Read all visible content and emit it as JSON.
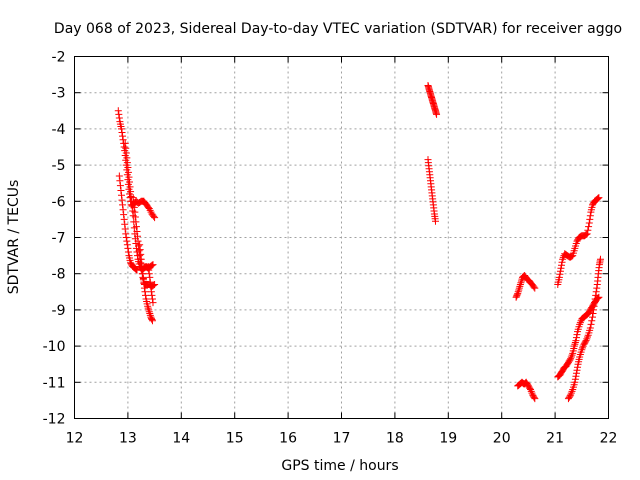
{
  "chart_data": {
    "type": "scatter",
    "title": "Day 068 of 2023, Sidereal Day-to-day VTEC variation (SDTVAR) for receiver aggo",
    "xlabel": "GPS time / hours",
    "ylabel": "SDTVAR / TECUs",
    "xlim": [
      12,
      22
    ],
    "ylim": [
      -12,
      -2
    ],
    "xticks": [
      12,
      13,
      14,
      15,
      16,
      17,
      18,
      19,
      20,
      21,
      22
    ],
    "yticks": [
      -2,
      -3,
      -4,
      -5,
      -6,
      -7,
      -8,
      -9,
      -10,
      -11,
      -12
    ],
    "grid": true,
    "marker": "+",
    "marker_color": "#ff0000",
    "series": [
      {
        "name": "trace-1",
        "points": [
          [
            12.82,
            -3.5
          ],
          [
            12.85,
            -3.8
          ],
          [
            12.88,
            -4.0
          ],
          [
            12.91,
            -4.3
          ],
          [
            12.94,
            -4.6
          ],
          [
            12.97,
            -5.0
          ],
          [
            13.0,
            -5.4
          ],
          [
            13.03,
            -5.8
          ],
          [
            13.06,
            -6.1
          ],
          [
            13.1,
            -6.1
          ],
          [
            13.15,
            -6.0
          ],
          [
            13.2,
            -6.05
          ],
          [
            13.25,
            -6.0
          ],
          [
            13.3,
            -6.0
          ],
          [
            13.35,
            -6.1
          ],
          [
            13.4,
            -6.2
          ],
          [
            13.45,
            -6.35
          ],
          [
            13.5,
            -6.45
          ]
        ]
      },
      {
        "name": "trace-2",
        "points": [
          [
            12.95,
            -4.4
          ],
          [
            12.98,
            -4.8
          ],
          [
            13.01,
            -5.2
          ],
          [
            13.04,
            -5.6
          ],
          [
            13.07,
            -6.0
          ],
          [
            13.1,
            -6.4
          ],
          [
            13.13,
            -6.9
          ],
          [
            13.16,
            -7.3
          ],
          [
            13.19,
            -7.6
          ],
          [
            13.22,
            -7.8
          ],
          [
            13.26,
            -7.9
          ],
          [
            13.3,
            -7.85
          ],
          [
            13.34,
            -7.8
          ],
          [
            13.38,
            -7.85
          ],
          [
            13.42,
            -7.8
          ],
          [
            13.47,
            -7.75
          ]
        ]
      },
      {
        "name": "trace-3",
        "points": [
          [
            12.84,
            -5.3
          ],
          [
            12.87,
            -5.7
          ],
          [
            12.9,
            -6.1
          ],
          [
            12.93,
            -6.5
          ],
          [
            12.96,
            -6.9
          ],
          [
            12.99,
            -7.2
          ],
          [
            13.02,
            -7.5
          ],
          [
            13.05,
            -7.7
          ],
          [
            13.09,
            -7.8
          ],
          [
            13.13,
            -7.85
          ],
          [
            13.17,
            -7.9
          ]
        ]
      },
      {
        "name": "trace-4",
        "points": [
          [
            13.1,
            -5.9
          ],
          [
            13.13,
            -6.3
          ],
          [
            13.16,
            -6.7
          ],
          [
            13.19,
            -7.1
          ],
          [
            13.22,
            -7.5
          ],
          [
            13.25,
            -7.8
          ],
          [
            13.28,
            -8.1
          ],
          [
            13.31,
            -8.3
          ],
          [
            13.35,
            -8.3
          ],
          [
            13.4,
            -8.3
          ],
          [
            13.45,
            -8.35
          ],
          [
            13.5,
            -8.3
          ]
        ]
      },
      {
        "name": "trace-5",
        "points": [
          [
            13.22,
            -7.2
          ],
          [
            13.25,
            -7.6
          ],
          [
            13.28,
            -8.0
          ],
          [
            13.31,
            -8.4
          ],
          [
            13.34,
            -8.7
          ],
          [
            13.37,
            -8.9
          ],
          [
            13.4,
            -9.05
          ],
          [
            13.43,
            -9.2
          ],
          [
            13.46,
            -9.3
          ]
        ]
      },
      {
        "name": "trace-6",
        "points": [
          [
            13.38,
            -7.8
          ],
          [
            13.41,
            -8.1
          ],
          [
            13.44,
            -8.5
          ],
          [
            13.47,
            -8.8
          ]
        ]
      },
      {
        "name": "trace-7",
        "points": [
          [
            18.62,
            -2.8
          ],
          [
            18.64,
            -2.9
          ],
          [
            18.66,
            -3.0
          ],
          [
            18.68,
            -3.1
          ],
          [
            18.7,
            -3.2
          ],
          [
            18.72,
            -3.3
          ],
          [
            18.74,
            -3.4
          ],
          [
            18.76,
            -3.5
          ],
          [
            18.78,
            -3.6
          ]
        ]
      },
      {
        "name": "trace-8",
        "points": [
          [
            18.62,
            -4.85
          ],
          [
            18.64,
            -5.1
          ],
          [
            18.66,
            -5.35
          ],
          [
            18.68,
            -5.6
          ],
          [
            18.7,
            -5.85
          ],
          [
            18.72,
            -6.1
          ],
          [
            18.74,
            -6.35
          ],
          [
            18.76,
            -6.55
          ]
        ]
      },
      {
        "name": "trace-9",
        "points": [
          [
            20.27,
            -8.65
          ],
          [
            20.3,
            -8.55
          ],
          [
            20.33,
            -8.4
          ],
          [
            20.36,
            -8.25
          ],
          [
            20.39,
            -8.1
          ],
          [
            20.43,
            -8.05
          ],
          [
            20.47,
            -8.15
          ],
          [
            20.52,
            -8.2
          ],
          [
            20.57,
            -8.3
          ],
          [
            20.62,
            -8.4
          ]
        ]
      },
      {
        "name": "trace-10",
        "points": [
          [
            20.3,
            -11.1
          ],
          [
            20.34,
            -11.05
          ],
          [
            20.38,
            -11.0
          ],
          [
            20.42,
            -11.05
          ],
          [
            20.46,
            -11.0
          ],
          [
            20.5,
            -11.1
          ],
          [
            20.54,
            -11.2
          ],
          [
            20.58,
            -11.35
          ],
          [
            20.62,
            -11.45
          ]
        ]
      },
      {
        "name": "trace-11",
        "points": [
          [
            21.05,
            -8.3
          ],
          [
            21.08,
            -8.1
          ],
          [
            21.11,
            -7.85
          ],
          [
            21.14,
            -7.6
          ],
          [
            21.18,
            -7.45
          ],
          [
            21.23,
            -7.5
          ],
          [
            21.28,
            -7.55
          ],
          [
            21.33,
            -7.5
          ],
          [
            21.37,
            -7.3
          ],
          [
            21.41,
            -7.1
          ],
          [
            21.45,
            -7.0
          ],
          [
            21.5,
            -6.95
          ],
          [
            21.55,
            -6.95
          ],
          [
            21.6,
            -6.9
          ],
          [
            21.64,
            -6.6
          ],
          [
            21.67,
            -6.3
          ],
          [
            21.7,
            -6.1
          ],
          [
            21.74,
            -6.0
          ],
          [
            21.78,
            -5.95
          ],
          [
            21.82,
            -5.9
          ]
        ]
      },
      {
        "name": "trace-12",
        "points": [
          [
            21.05,
            -10.85
          ],
          [
            21.09,
            -10.8
          ],
          [
            21.13,
            -10.7
          ],
          [
            21.17,
            -10.6
          ],
          [
            21.21,
            -10.55
          ],
          [
            21.25,
            -10.45
          ],
          [
            21.29,
            -10.35
          ],
          [
            21.33,
            -10.2
          ],
          [
            21.36,
            -10.0
          ],
          [
            21.39,
            -9.85
          ],
          [
            21.42,
            -9.6
          ],
          [
            21.46,
            -9.4
          ],
          [
            21.5,
            -9.25
          ],
          [
            21.54,
            -9.2
          ],
          [
            21.58,
            -9.15
          ],
          [
            21.62,
            -9.1
          ],
          [
            21.66,
            -9.0
          ],
          [
            21.7,
            -8.9
          ],
          [
            21.74,
            -8.8
          ],
          [
            21.78,
            -8.7
          ],
          [
            21.82,
            -8.65
          ]
        ]
      },
      {
        "name": "trace-13",
        "points": [
          [
            21.25,
            -11.45
          ],
          [
            21.29,
            -11.35
          ],
          [
            21.33,
            -11.2
          ],
          [
            21.37,
            -11.0
          ],
          [
            21.4,
            -10.75
          ],
          [
            21.43,
            -10.5
          ],
          [
            21.46,
            -10.3
          ],
          [
            21.5,
            -10.1
          ],
          [
            21.54,
            -9.95
          ],
          [
            21.58,
            -9.85
          ],
          [
            21.62,
            -9.7
          ],
          [
            21.66,
            -9.5
          ],
          [
            21.7,
            -9.2
          ],
          [
            21.73,
            -8.9
          ],
          [
            21.76,
            -8.6
          ],
          [
            21.79,
            -8.3
          ],
          [
            21.81,
            -8.0
          ],
          [
            21.83,
            -7.75
          ],
          [
            21.85,
            -7.6
          ]
        ]
      }
    ]
  }
}
